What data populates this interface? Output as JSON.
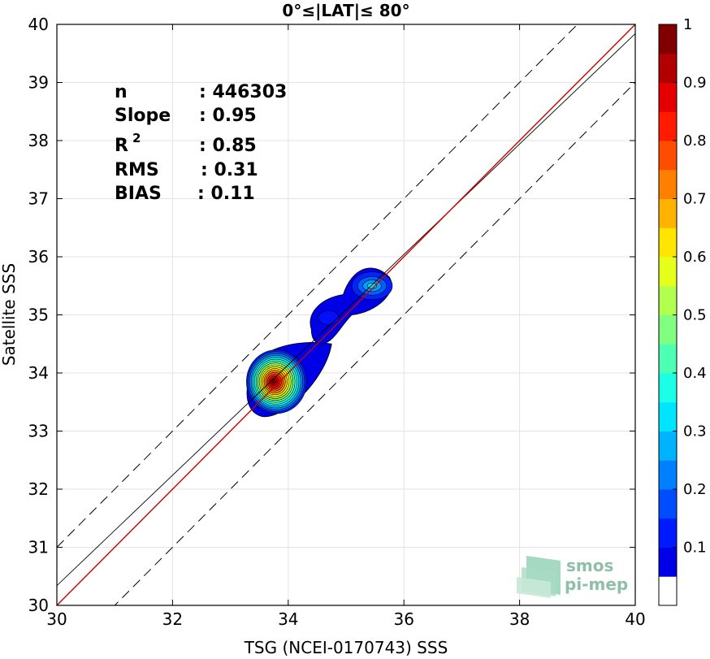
{
  "chart_data": {
    "type": "scatter",
    "title": "0°≤|LAT|≤ 80°",
    "xlabel": "TSG (NCEI-0170743) SSS",
    "ylabel": "Satellite SSS",
    "xlim": [
      30,
      40
    ],
    "ylim": [
      30,
      40
    ],
    "xticks": [
      "30",
      "32",
      "34",
      "36",
      "38",
      "40"
    ],
    "yticks": [
      "30",
      "31",
      "32",
      "33",
      "34",
      "35",
      "36",
      "37",
      "38",
      "39",
      "40"
    ],
    "grid": true,
    "stats": {
      "n_label": "n",
      "n_value": ": 446303",
      "slope_label": "Slope",
      "slope_value": ": 0.95",
      "r2_label": "R",
      "r2_sup": "2",
      "r2_value": ": 0.85",
      "rms_label": "RMS",
      "rms_value": ": 0.31",
      "bias_label": "BIAS",
      "bias_value": ": 0.11"
    },
    "lines": {
      "one_to_one": {
        "slope": 1.0,
        "intercept": 0.0,
        "color": "#cc0000"
      },
      "fit": {
        "slope": 0.95,
        "intercept": 1.84,
        "color": "#000000"
      },
      "upper_bound": {
        "slope": 1.0,
        "intercept": 1.0,
        "style": "dashed"
      },
      "lower_bound": {
        "slope": 1.0,
        "intercept": -1.0,
        "style": "dashed"
      }
    },
    "density_clusters": [
      {
        "center_x": 33.75,
        "center_y": 33.85,
        "peak": 1.0
      },
      {
        "center_x": 35.45,
        "center_y": 35.5,
        "peak": 0.35
      },
      {
        "center_x": 34.7,
        "center_y": 34.95,
        "peak": 0.12
      }
    ],
    "colorbar": {
      "ticks": [
        "0.1",
        "0.2",
        "0.3",
        "0.4",
        "0.5",
        "0.6",
        "0.7",
        "0.8",
        "0.9",
        "1"
      ],
      "levels": 20
    },
    "logo": {
      "line1": "smos",
      "line2": "pi-mep"
    }
  }
}
